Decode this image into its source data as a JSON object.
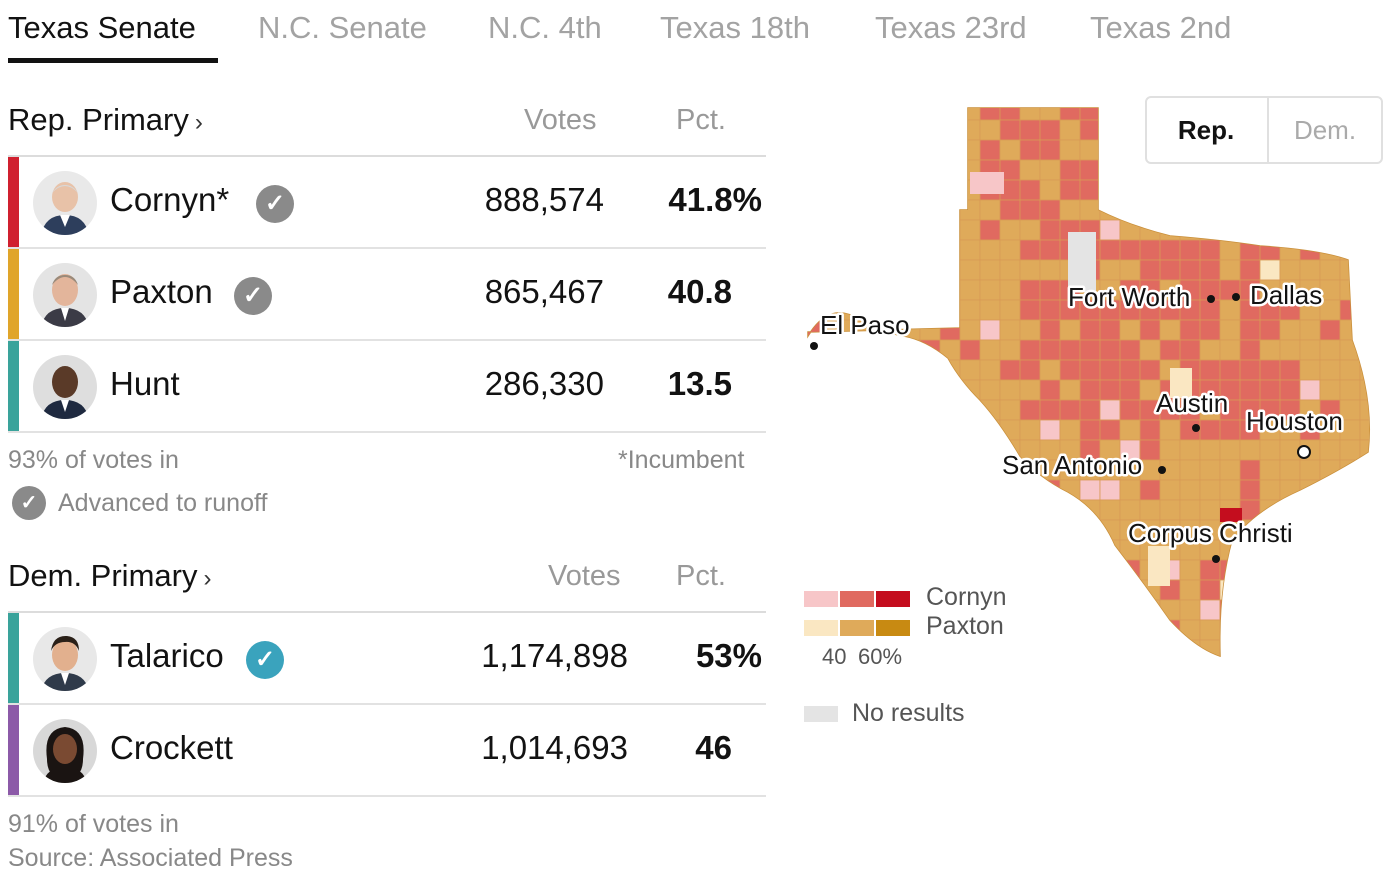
{
  "tabs": [
    {
      "label": "Texas Senate",
      "active": true
    },
    {
      "label": "N.C. Senate",
      "active": false
    },
    {
      "label": "N.C. 4th",
      "active": false
    },
    {
      "label": "Texas 18th",
      "active": false
    },
    {
      "label": "Texas 23rd",
      "active": false
    },
    {
      "label": "Texas 2nd",
      "active": false
    }
  ],
  "rep_primary": {
    "title": "Rep. Primary",
    "chevron": "›",
    "votes_header": "Votes",
    "pct_header": "Pct.",
    "candidates": [
      {
        "name": "Cornyn*",
        "votes": "888,574",
        "pct": "41.8%",
        "advanced": true,
        "bar_color": "#d0202f"
      },
      {
        "name": "Paxton",
        "votes": "865,467",
        "pct": "40.8",
        "advanced": true,
        "bar_color": "#e0a52a"
      },
      {
        "name": "Hunt",
        "votes": "286,330",
        "pct": "13.5",
        "advanced": false,
        "bar_color": "#3aa39b"
      }
    ],
    "reporting": "93% of votes in",
    "incumbent_note": "*Incumbent",
    "runoff_legend": "Advanced to runoff"
  },
  "dem_primary": {
    "title": "Dem. Primary",
    "chevron": "›",
    "votes_header": "Votes",
    "pct_header": "Pct.",
    "candidates": [
      {
        "name": "Talarico",
        "votes": "1,174,898",
        "pct": "53%",
        "winner": true,
        "bar_color": "#3aa39b"
      },
      {
        "name": "Crockett",
        "votes": "1,014,693",
        "pct": "46",
        "winner": false,
        "bar_color": "#8c5aa8"
      }
    ],
    "reporting": "91% of votes in",
    "source": "Source: Associated Press"
  },
  "map_toggle": {
    "rep": "Rep.",
    "dem": "Dem.",
    "selected": "Rep."
  },
  "map": {
    "cities": [
      "El Paso",
      "Fort Worth",
      "Dallas",
      "Austin",
      "Houston",
      "San Antonio",
      "Corpus Christi"
    ],
    "colors": {
      "cornyn_light": "#f7c6c8",
      "cornyn_mid": "#e06a60",
      "cornyn_dark": "#c40d1e",
      "paxton_light": "#fae7c2",
      "paxton_mid": "#dfaa5a",
      "paxton_dark": "#c88a12",
      "no_results": "#e4e4e4"
    },
    "legend": {
      "cornyn": "Cornyn",
      "paxton": "Paxton",
      "scale_low": "40",
      "scale_high": "60%",
      "no_results": "No results"
    }
  }
}
